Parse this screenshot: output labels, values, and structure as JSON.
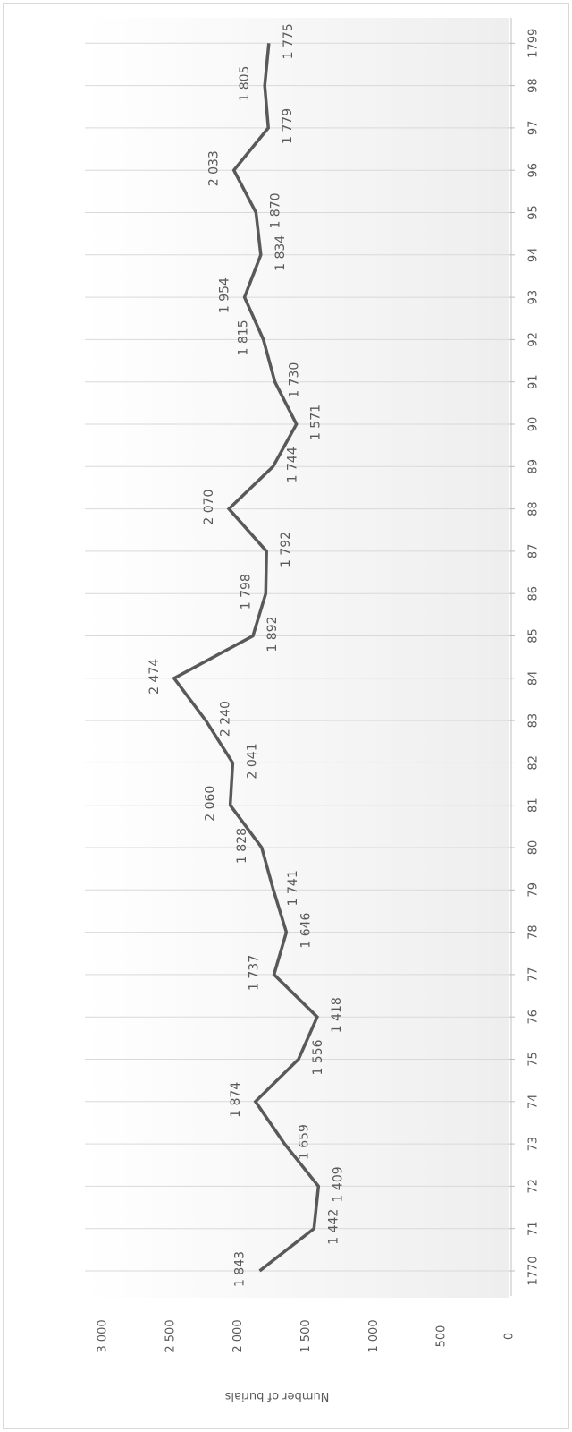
{
  "chart_data": {
    "type": "line",
    "orientation": "rotated 90 degrees clockwise",
    "title": "",
    "xlabel": "",
    "ylabel": "Number of burials",
    "ylim": [
      0,
      3000
    ],
    "y_ticks": [
      0,
      500,
      1000,
      1500,
      2000,
      2500,
      3000
    ],
    "y_tick_labels": [
      "0",
      "500",
      "1 000",
      "1 500",
      "2 000",
      "2 500",
      "3 000"
    ],
    "grid": "vertical gridlines at each category",
    "background": "gradient plot area",
    "line_color": "#595959",
    "categories": [
      "1770",
      "71",
      "72",
      "73",
      "74",
      "75",
      "76",
      "77",
      "78",
      "79",
      "80",
      "81",
      "82",
      "83",
      "84",
      "85",
      "86",
      "87",
      "88",
      "89",
      "90",
      "91",
      "92",
      "93",
      "94",
      "95",
      "96",
      "97",
      "98",
      "1799"
    ],
    "series": [
      {
        "values": [
          1843,
          1442,
          1409,
          1659,
          1874,
          1556,
          1418,
          1737,
          1646,
          1741,
          1828,
          2060,
          2041,
          2240,
          2474,
          1892,
          1798,
          1792,
          2070,
          1744,
          1571,
          1730,
          1815,
          1954,
          1834,
          1870,
          2033,
          1779,
          1805,
          1775
        ],
        "data_labels": [
          "1 843",
          "1 442",
          "1 409",
          "1 659",
          "1 874",
          "1 556",
          "1 418",
          "1 737",
          "1 646",
          "1 741",
          "1 828",
          "2 060",
          "2 041",
          "2 240",
          "2 474",
          "1 892",
          "1 798",
          "1 792",
          "2 070",
          "1 744",
          "1 571",
          "1 730",
          "1 815",
          "1 954",
          "1 834",
          "1 870",
          "2 033",
          "1 779",
          "1 805",
          "1 775"
        ]
      }
    ]
  }
}
